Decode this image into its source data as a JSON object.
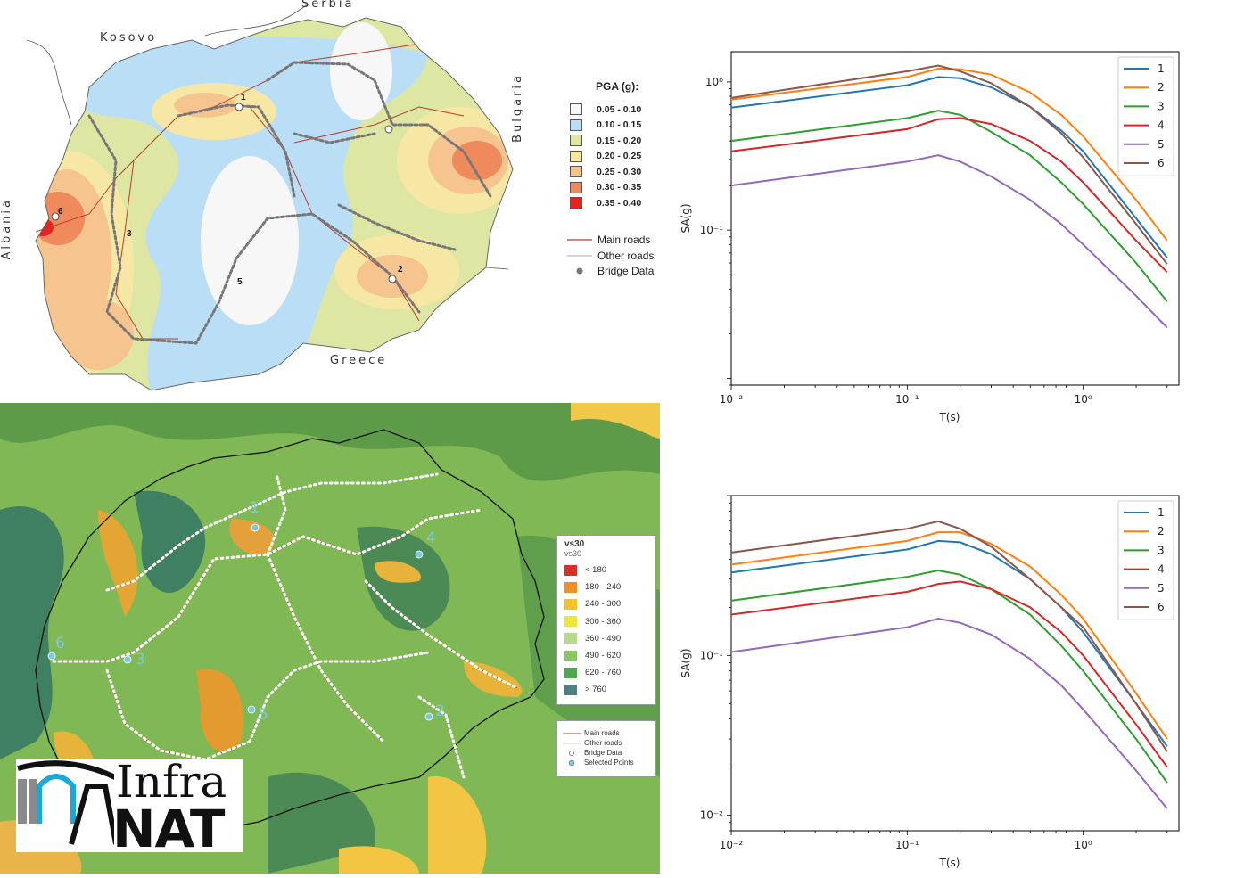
{
  "top_map": {
    "countries": {
      "serbia": "Serbia",
      "kosovo": "Kosovo",
      "bulgaria": "Bulgaria",
      "albania": "Albania",
      "greece": "Greece"
    },
    "point_labels": [
      "1",
      "2",
      "3",
      "5",
      "6"
    ],
    "legend": {
      "title": "PGA (g):",
      "classes": [
        {
          "label": "0.05 - 0.10",
          "color": "#f7f7f7"
        },
        {
          "label": "0.10 - 0.15",
          "color": "#b9def5"
        },
        {
          "label": "0.15 - 0.20",
          "color": "#dde7a3"
        },
        {
          "label": "0.20 - 0.25",
          "color": "#f7e7a4"
        },
        {
          "label": "0.25 - 0.30",
          "color": "#f6c58f"
        },
        {
          "label": "0.30 - 0.35",
          "color": "#ee8a5b"
        },
        {
          "label": "0.35 - 0.40",
          "color": "#e8231e"
        }
      ],
      "main_roads": "Main roads",
      "other_roads": "Other roads",
      "bridge_data": "Bridge Data"
    }
  },
  "bottom_map": {
    "point_labels": [
      "1",
      "2",
      "3",
      "4",
      "5",
      "6"
    ],
    "legend": {
      "title": "vs30",
      "subtitle": "vs30",
      "classes": [
        {
          "label": "< 180",
          "color": "#d7312a"
        },
        {
          "label": "180 - 240",
          "color": "#f08f29"
        },
        {
          "label": "240 - 300",
          "color": "#f5c22c"
        },
        {
          "label": "300 - 360",
          "color": "#f0e53a"
        },
        {
          "label": "360 - 490",
          "color": "#b7d98a"
        },
        {
          "label": "490 - 620",
          "color": "#8cc665"
        },
        {
          "label": "620 - 760",
          "color": "#4fa84c"
        },
        {
          "label": "> 760",
          "color": "#4f7f82"
        }
      ],
      "main_roads": "Main roads",
      "other_roads": "Other roads",
      "bridge_data": "Bridge Data",
      "selected_points": "Selected Points"
    },
    "logo": {
      "line1": "Infra",
      "line2": "NAT"
    }
  },
  "chart_data": [
    {
      "type": "line",
      "xlabel": "T(s)",
      "ylabel": "SA(g)",
      "xscale": "log",
      "yscale": "log",
      "xlim": [
        0.01,
        3.5
      ],
      "ylim": [
        0.009,
        1.6
      ],
      "xticks": [
        "10⁻²",
        "10⁻¹",
        "10⁰"
      ],
      "yticks": [
        "10⁻¹",
        "10⁰"
      ],
      "legend_position": "top-right",
      "x": [
        0.01,
        0.1,
        0.15,
        0.2,
        0.3,
        0.5,
        0.75,
        1.0,
        2.0,
        3.0
      ],
      "series": [
        {
          "name": "1",
          "color": "#1f77b4",
          "values": [
            0.67,
            0.95,
            1.08,
            1.06,
            0.92,
            0.68,
            0.47,
            0.34,
            0.12,
            0.065
          ]
        },
        {
          "name": "2",
          "color": "#ff7f0e",
          "values": [
            0.76,
            1.08,
            1.23,
            1.22,
            1.12,
            0.85,
            0.6,
            0.43,
            0.16,
            0.085
          ]
        },
        {
          "name": "3",
          "color": "#2ca02c",
          "values": [
            0.4,
            0.57,
            0.64,
            0.6,
            0.46,
            0.32,
            0.21,
            0.15,
            0.06,
            0.033
          ]
        },
        {
          "name": "4",
          "color": "#d62728",
          "values": [
            0.34,
            0.48,
            0.56,
            0.57,
            0.52,
            0.4,
            0.29,
            0.21,
            0.085,
            0.052
          ]
        },
        {
          "name": "5",
          "color": "#9467bd",
          "values": [
            0.2,
            0.29,
            0.32,
            0.29,
            0.23,
            0.16,
            0.11,
            0.08,
            0.036,
            0.022
          ]
        },
        {
          "name": "6",
          "color": "#8c564b",
          "values": [
            0.78,
            1.18,
            1.29,
            1.18,
            0.98,
            0.68,
            0.45,
            0.31,
            0.11,
            0.059
          ]
        }
      ]
    },
    {
      "type": "line",
      "xlabel": "T(s)",
      "ylabel": "SA(g)",
      "xscale": "log",
      "yscale": "log",
      "xlim": [
        0.01,
        3.5
      ],
      "ylim": [
        0.008,
        1.0
      ],
      "xticks": [
        "10⁻²",
        "10⁻¹",
        "10⁰"
      ],
      "yticks": [
        "10⁻²",
        "10⁻¹"
      ],
      "legend_position": "top-right",
      "x": [
        0.01,
        0.1,
        0.15,
        0.2,
        0.3,
        0.5,
        0.75,
        1.0,
        2.0,
        3.0
      ],
      "series": [
        {
          "name": "1",
          "color": "#1f77b4",
          "values": [
            0.33,
            0.46,
            0.52,
            0.51,
            0.43,
            0.3,
            0.2,
            0.14,
            0.05,
            0.027
          ]
        },
        {
          "name": "2",
          "color": "#ff7f0e",
          "values": [
            0.37,
            0.52,
            0.59,
            0.59,
            0.5,
            0.36,
            0.24,
            0.17,
            0.058,
            0.03
          ]
        },
        {
          "name": "3",
          "color": "#2ca02c",
          "values": [
            0.22,
            0.31,
            0.34,
            0.32,
            0.26,
            0.18,
            0.115,
            0.08,
            0.03,
            0.016
          ]
        },
        {
          "name": "4",
          "color": "#d62728",
          "values": [
            0.18,
            0.25,
            0.28,
            0.29,
            0.26,
            0.2,
            0.14,
            0.1,
            0.037,
            0.02
          ]
        },
        {
          "name": "5",
          "color": "#9467bd",
          "values": [
            0.105,
            0.15,
            0.17,
            0.16,
            0.135,
            0.095,
            0.065,
            0.046,
            0.019,
            0.011
          ]
        },
        {
          "name": "6",
          "color": "#8c564b",
          "values": [
            0.44,
            0.62,
            0.69,
            0.62,
            0.48,
            0.3,
            0.2,
            0.15,
            0.05,
            0.025
          ]
        }
      ]
    }
  ]
}
